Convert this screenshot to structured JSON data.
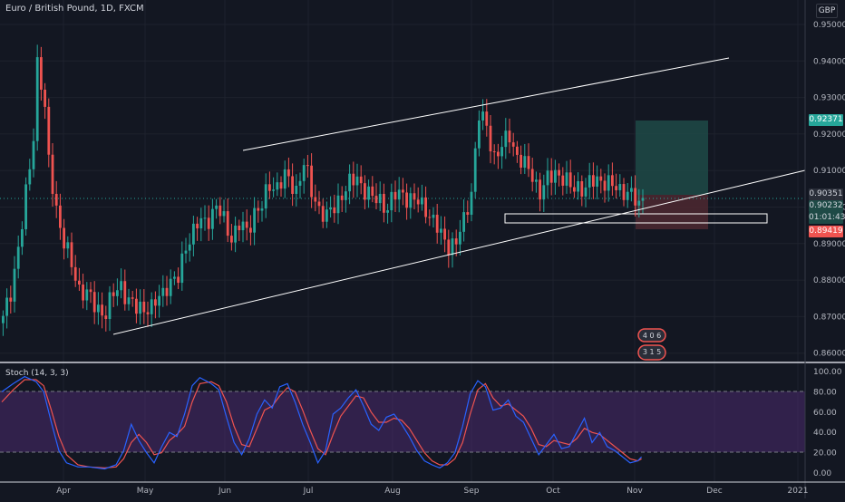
{
  "header": {
    "symbol_title": "Euro / British Pound, 1D, FXCM"
  },
  "currency": "GBP",
  "price_axis": {
    "ticks": [
      "0.95000",
      "0.94000",
      "0.93000",
      "0.92000",
      "0.91000",
      "0.90000",
      "0.89000",
      "0.88000",
      "0.87000",
      "0.86000"
    ],
    "ymin": 0.8555,
    "ymax": 0.9535
  },
  "badges": {
    "target": "0.92371",
    "last": "0.90351",
    "entry": "0.90232",
    "timer": "01:01:43",
    "stop": "0.89419"
  },
  "stoch": {
    "title": "Stoch (14, 3, 3)",
    "ticks": [
      "100.00",
      "80.00",
      "60.00",
      "40.00",
      "20.00",
      "0.00"
    ],
    "upper": 80,
    "lower": 20
  },
  "time_axis": {
    "labels": [
      "Apr",
      "May",
      "Jun",
      "Jul",
      "Aug",
      "Sep",
      "Oct",
      "Nov",
      "Dec",
      "2021"
    ]
  },
  "colors": {
    "background": "#131722",
    "up": "#26a69a",
    "down": "#ef5350",
    "stoch_k": "#2962ff",
    "stoch_d": "#ef5350",
    "stoch_band": "#4a2a6e",
    "profit_zone": "#1e4a46",
    "loss_zone": "#4a2730"
  },
  "icons": {
    "events": "calendar-event-icon"
  },
  "event_markers": [
    "4 0 6",
    "3 1 5"
  ],
  "chart_data": {
    "type": "candlestick",
    "title": "Euro / British Pound, 1D, FXCM",
    "ylim": [
      0.8555,
      0.9535
    ],
    "anchors": [
      [
        0,
        0.869
      ],
      [
        2,
        0.877
      ],
      [
        5,
        0.895
      ],
      [
        7,
        0.911
      ],
      [
        8,
        0.92
      ],
      [
        9,
        0.94
      ],
      [
        10,
        0.934
      ],
      [
        11,
        0.926
      ],
      [
        12,
        0.912
      ],
      [
        14,
        0.9
      ],
      [
        16,
        0.89
      ],
      [
        18,
        0.884
      ],
      [
        20,
        0.878
      ],
      [
        22,
        0.876
      ],
      [
        24,
        0.873
      ],
      [
        27,
        0.871
      ],
      [
        29,
        0.876
      ],
      [
        31,
        0.879
      ],
      [
        33,
        0.874
      ],
      [
        35,
        0.872
      ],
      [
        37,
        0.873
      ],
      [
        39,
        0.872
      ],
      [
        41,
        0.875
      ],
      [
        43,
        0.879
      ],
      [
        46,
        0.88
      ],
      [
        48,
        0.89
      ],
      [
        51,
        0.895
      ],
      [
        53,
        0.896
      ],
      [
        56,
        0.9
      ],
      [
        58,
        0.896
      ],
      [
        60,
        0.892
      ],
      [
        62,
        0.895
      ],
      [
        64,
        0.893
      ],
      [
        66,
        0.899
      ],
      [
        68,
        0.9
      ],
      [
        70,
        0.906
      ],
      [
        72,
        0.906
      ],
      [
        74,
        0.908
      ],
      [
        77,
        0.905
      ],
      [
        79,
        0.912
      ],
      [
        81,
        0.904
      ],
      [
        83,
        0.9
      ],
      [
        85,
        0.897
      ],
      [
        87,
        0.9
      ],
      [
        89,
        0.904
      ],
      [
        91,
        0.906
      ],
      [
        93,
        0.908
      ],
      [
        95,
        0.905
      ],
      [
        97,
        0.902
      ],
      [
        99,
        0.902
      ],
      [
        101,
        0.9
      ],
      [
        103,
        0.903
      ],
      [
        105,
        0.904
      ],
      [
        107,
        0.902
      ],
      [
        109,
        0.901
      ],
      [
        111,
        0.9
      ],
      [
        113,
        0.896
      ],
      [
        115,
        0.892
      ],
      [
        117,
        0.89
      ],
      [
        119,
        0.89
      ],
      [
        121,
        0.896
      ],
      [
        123,
        0.905
      ],
      [
        124,
        0.915
      ],
      [
        125,
        0.925
      ],
      [
        127,
        0.922
      ],
      [
        129,
        0.914
      ],
      [
        131,
        0.916
      ],
      [
        133,
        0.92
      ],
      [
        135,
        0.914
      ],
      [
        137,
        0.911
      ],
      [
        139,
        0.909
      ],
      [
        141,
        0.904
      ],
      [
        143,
        0.907
      ],
      [
        145,
        0.91
      ],
      [
        147,
        0.908
      ],
      [
        149,
        0.905
      ],
      [
        151,
        0.906
      ],
      [
        153,
        0.905
      ],
      [
        155,
        0.907
      ],
      [
        157,
        0.908
      ],
      [
        159,
        0.906
      ],
      [
        161,
        0.905
      ],
      [
        163,
        0.905
      ],
      [
        165,
        0.903
      ],
      [
        167,
        0.9
      ],
      [
        168,
        0.9035
      ]
    ],
    "stoch_k": [
      [
        0,
        80
      ],
      [
        3,
        88
      ],
      [
        6,
        95
      ],
      [
        9,
        90
      ],
      [
        11,
        80
      ],
      [
        13,
        50
      ],
      [
        15,
        22
      ],
      [
        17,
        10
      ],
      [
        20,
        6
      ],
      [
        23,
        6
      ],
      [
        27,
        4
      ],
      [
        30,
        8
      ],
      [
        32,
        22
      ],
      [
        34,
        48
      ],
      [
        36,
        32
      ],
      [
        38,
        20
      ],
      [
        40,
        10
      ],
      [
        42,
        26
      ],
      [
        44,
        40
      ],
      [
        46,
        36
      ],
      [
        48,
        58
      ],
      [
        50,
        86
      ],
      [
        52,
        94
      ],
      [
        55,
        88
      ],
      [
        57,
        82
      ],
      [
        59,
        55
      ],
      [
        61,
        30
      ],
      [
        63,
        18
      ],
      [
        65,
        34
      ],
      [
        67,
        58
      ],
      [
        69,
        72
      ],
      [
        71,
        64
      ],
      [
        73,
        85
      ],
      [
        75,
        88
      ],
      [
        77,
        70
      ],
      [
        79,
        48
      ],
      [
        81,
        30
      ],
      [
        83,
        10
      ],
      [
        85,
        22
      ],
      [
        87,
        58
      ],
      [
        89,
        64
      ],
      [
        91,
        74
      ],
      [
        93,
        82
      ],
      [
        95,
        66
      ],
      [
        97,
        48
      ],
      [
        99,
        42
      ],
      [
        101,
        55
      ],
      [
        103,
        58
      ],
      [
        105,
        48
      ],
      [
        107,
        36
      ],
      [
        109,
        22
      ],
      [
        111,
        12
      ],
      [
        113,
        8
      ],
      [
        115,
        5
      ],
      [
        117,
        10
      ],
      [
        119,
        20
      ],
      [
        121,
        46
      ],
      [
        123,
        78
      ],
      [
        125,
        91
      ],
      [
        127,
        85
      ],
      [
        129,
        62
      ],
      [
        131,
        64
      ],
      [
        133,
        72
      ],
      [
        135,
        56
      ],
      [
        137,
        50
      ],
      [
        139,
        34
      ],
      [
        141,
        18
      ],
      [
        143,
        28
      ],
      [
        145,
        38
      ],
      [
        147,
        24
      ],
      [
        149,
        26
      ],
      [
        151,
        40
      ],
      [
        153,
        54
      ],
      [
        155,
        30
      ],
      [
        157,
        40
      ],
      [
        159,
        26
      ],
      [
        161,
        22
      ],
      [
        163,
        16
      ],
      [
        165,
        10
      ],
      [
        167,
        12
      ],
      [
        168,
        16
      ]
    ],
    "stoch_d": [
      [
        0,
        70
      ],
      [
        3,
        82
      ],
      [
        6,
        92
      ],
      [
        9,
        92
      ],
      [
        11,
        86
      ],
      [
        13,
        62
      ],
      [
        15,
        36
      ],
      [
        17,
        18
      ],
      [
        20,
        8
      ],
      [
        23,
        6
      ],
      [
        27,
        5
      ],
      [
        30,
        6
      ],
      [
        32,
        14
      ],
      [
        34,
        30
      ],
      [
        36,
        38
      ],
      [
        38,
        30
      ],
      [
        40,
        18
      ],
      [
        42,
        20
      ],
      [
        44,
        32
      ],
      [
        46,
        38
      ],
      [
        48,
        46
      ],
      [
        50,
        70
      ],
      [
        52,
        88
      ],
      [
        55,
        90
      ],
      [
        57,
        86
      ],
      [
        59,
        70
      ],
      [
        61,
        46
      ],
      [
        63,
        28
      ],
      [
        65,
        26
      ],
      [
        67,
        44
      ],
      [
        69,
        62
      ],
      [
        71,
        66
      ],
      [
        73,
        76
      ],
      [
        75,
        84
      ],
      [
        77,
        80
      ],
      [
        79,
        62
      ],
      [
        81,
        42
      ],
      [
        83,
        24
      ],
      [
        85,
        18
      ],
      [
        87,
        38
      ],
      [
        89,
        56
      ],
      [
        91,
        66
      ],
      [
        93,
        76
      ],
      [
        95,
        74
      ],
      [
        97,
        60
      ],
      [
        99,
        50
      ],
      [
        101,
        50
      ],
      [
        103,
        54
      ],
      [
        105,
        52
      ],
      [
        107,
        44
      ],
      [
        109,
        32
      ],
      [
        111,
        20
      ],
      [
        113,
        12
      ],
      [
        115,
        8
      ],
      [
        117,
        8
      ],
      [
        119,
        14
      ],
      [
        121,
        30
      ],
      [
        123,
        58
      ],
      [
        125,
        82
      ],
      [
        127,
        88
      ],
      [
        129,
        74
      ],
      [
        131,
        66
      ],
      [
        133,
        68
      ],
      [
        135,
        62
      ],
      [
        137,
        56
      ],
      [
        139,
        44
      ],
      [
        141,
        28
      ],
      [
        143,
        26
      ],
      [
        145,
        32
      ],
      [
        147,
        30
      ],
      [
        149,
        28
      ],
      [
        151,
        34
      ],
      [
        153,
        44
      ],
      [
        155,
        40
      ],
      [
        157,
        38
      ],
      [
        159,
        32
      ],
      [
        161,
        26
      ],
      [
        163,
        20
      ],
      [
        165,
        14
      ],
      [
        167,
        12
      ],
      [
        168,
        14
      ]
    ]
  }
}
